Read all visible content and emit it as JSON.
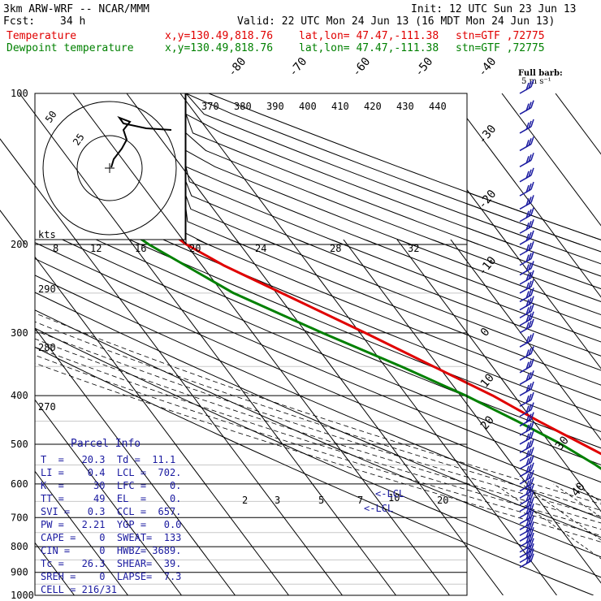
{
  "header": {
    "model": "3km ARW-WRF -- NCAR/MMM",
    "init": "Init: 12 UTC Sun 23 Jun 13",
    "fcst_label": "Fcst:",
    "fcst_value": "34 h",
    "valid": "Valid: 22 UTC Mon 24 Jun 13 (16 MDT Mon 24 Jun 13)",
    "temp_label": "Temperature",
    "dew_label": "Dewpoint temperature",
    "xy": "x,y=130.49,818.76",
    "latlon": "lat,lon= 47.47,-111.38",
    "stn": "stn=GTF ,72775",
    "barb_title": "Full barb:",
    "barb_units": "5 m s⁻¹"
  },
  "colors": {
    "temperature": "#e00000",
    "dewpoint": "#008000",
    "parcel": "#1a1aa0",
    "hodograph": "#000000"
  },
  "chart_data": {
    "type": "line",
    "subtype": "skew-t log-p sounding",
    "pressure_levels": [
      100,
      200,
      300,
      400,
      500,
      600,
      700,
      800,
      900,
      1000
    ],
    "pressure_ylabels": [
      "100",
      "200",
      "300",
      "400",
      "500",
      "600",
      "700",
      "800",
      "900",
      "1000"
    ],
    "isotherm_labels": [
      "-80",
      "-70",
      "-60",
      "-50",
      "-40",
      "-30",
      "-20",
      "-10",
      "0",
      "10",
      "20",
      "30",
      "40"
    ],
    "potential_temp_labels": [
      "370",
      "380",
      "390",
      "400",
      "410",
      "420",
      "430",
      "440"
    ],
    "dry_adiabat_labels": [
      "290",
      "280",
      "270"
    ],
    "mixing_ratio_labels": [
      "2",
      "3",
      "5",
      "7",
      "10",
      "20"
    ],
    "hodograph_speed_labels": [
      "8",
      "12",
      "16",
      "20",
      "24",
      "28",
      "32"
    ],
    "hodograph_ring_labels": [
      "50",
      "25"
    ],
    "hodograph_units": "kts",
    "lcl_label": "<-LCL",
    "ccl_label": "<-LCL",
    "series": [
      {
        "name": "Temperature",
        "points": [
          [
            885,
            25.5
          ],
          [
            870,
            25.0
          ],
          [
            850,
            23.0
          ],
          [
            800,
            20.0
          ],
          [
            750,
            15.0
          ],
          [
            700,
            10.8
          ],
          [
            650,
            7.5
          ],
          [
            600,
            4.5
          ],
          [
            550,
            0.5
          ],
          [
            500,
            -4.0
          ],
          [
            450,
            -9.0
          ],
          [
            400,
            -14.0
          ],
          [
            350,
            -21.0
          ],
          [
            300,
            -29.0
          ],
          [
            250,
            -39.0
          ],
          [
            220,
            -46.0
          ],
          [
            200,
            -50.0
          ],
          [
            180,
            -52.5
          ],
          [
            160,
            -54.0
          ],
          [
            140,
            -56.0
          ],
          [
            120,
            -58.0
          ],
          [
            100,
            -61.0
          ]
        ]
      },
      {
        "name": "Dewpoint temperature",
        "points": [
          [
            885,
            11.0
          ],
          [
            870,
            6.0
          ],
          [
            850,
            5.0
          ],
          [
            800,
            4.0
          ],
          [
            750,
            3.5
          ],
          [
            700,
            2.0
          ],
          [
            650,
            0.5
          ],
          [
            600,
            -2.0
          ],
          [
            550,
            -4.5
          ],
          [
            500,
            -8.0
          ],
          [
            450,
            -13.0
          ],
          [
            400,
            -19.0
          ],
          [
            350,
            -27.0
          ],
          [
            300,
            -37.0
          ],
          [
            250,
            -48.0
          ],
          [
            200,
            -57.0
          ],
          [
            180,
            -60.0
          ],
          [
            160,
            -63.0
          ],
          [
            140,
            -66.0
          ],
          [
            120,
            -70.0
          ],
          [
            100,
            -73.0
          ]
        ]
      }
    ],
    "wind_barb_pressures": [
      100,
      110,
      120,
      130,
      140,
      150,
      160,
      170,
      180,
      190,
      200,
      210,
      220,
      230,
      240,
      250,
      260,
      270,
      280,
      290,
      300,
      320,
      340,
      360,
      380,
      400,
      420,
      440,
      460,
      480,
      500,
      520,
      540,
      560,
      580,
      600,
      620,
      640,
      660,
      680,
      700,
      720,
      740,
      760,
      780,
      800,
      820,
      840,
      860,
      880
    ]
  },
  "parcel": {
    "title": "Parcel Info",
    "rows": [
      "T  =   20.3  Td =  11.1",
      "LI =    0.4  LCL =  702.",
      "K  =     30  LFC =    0.",
      "TT =     49  EL  =    0.",
      "SVI =   0.3  CCL =  657.",
      "PW =   2.21  YGP =   0.0",
      "CAPE =    0  SWEAT=  133",
      "CIN =     0  HWBZ= 3689.",
      "Tc =   26.3  SHEAR=  39.",
      "SREH =    0  LAPSE=  7.3",
      "CELL = 216/31"
    ]
  }
}
